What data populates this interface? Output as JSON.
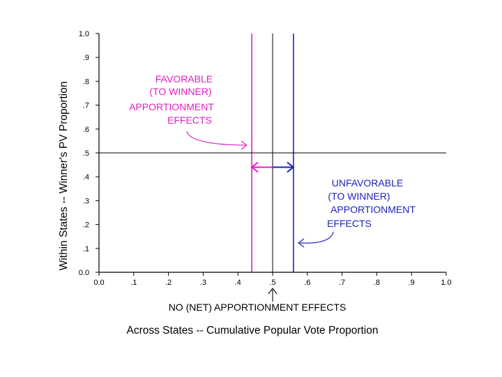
{
  "chart_data": {
    "type": "line",
    "xlabel": "Across States -- Cumulative Popular Vote Proportion",
    "ylabel": "Within States -- Winner's PV Proportion",
    "xlim": [
      0.0,
      1.0
    ],
    "ylim": [
      0.0,
      1.0
    ],
    "grid": false,
    "x_ticks": [
      {
        "value": 0.0,
        "label": "0.0"
      },
      {
        "value": 0.1,
        "label": ".1"
      },
      {
        "value": 0.2,
        "label": ".2"
      },
      {
        "value": 0.3,
        "label": ".3"
      },
      {
        "value": 0.4,
        "label": ".4"
      },
      {
        "value": 0.5,
        "label": ".5"
      },
      {
        "value": 0.6,
        "label": ".6"
      },
      {
        "value": 0.7,
        "label": ".7"
      },
      {
        "value": 0.8,
        "label": ".8"
      },
      {
        "value": 0.9,
        "label": ".9"
      },
      {
        "value": 1.0,
        "label": "1.0"
      }
    ],
    "y_ticks": [
      {
        "value": 0.0,
        "label": "0.0"
      },
      {
        "value": 0.1,
        "label": ".1"
      },
      {
        "value": 0.2,
        "label": ".2"
      },
      {
        "value": 0.3,
        "label": ".3"
      },
      {
        "value": 0.4,
        "label": ".4"
      },
      {
        "value": 0.5,
        "label": ".5"
      },
      {
        "value": 0.6,
        "label": ".6"
      },
      {
        "value": 0.7,
        "label": ".7"
      },
      {
        "value": 0.8,
        "label": ".8"
      },
      {
        "value": 0.9,
        "label": ".9"
      },
      {
        "value": 1.0,
        "label": "1.0"
      }
    ],
    "reference_lines": [
      {
        "name": "favorable-line",
        "orientation": "vertical",
        "x": 0.44,
        "color": "#e020c0"
      },
      {
        "name": "no-net-line",
        "orientation": "vertical",
        "x": 0.5,
        "color": "#000000"
      },
      {
        "name": "unfavorable-line",
        "orientation": "vertical",
        "x": 0.56,
        "color": "#2020c0"
      },
      {
        "name": "horizontal-half-line",
        "orientation": "horizontal",
        "y": 0.5,
        "color": "#000000"
      }
    ],
    "range_arrows": [
      {
        "name": "favorable-range-arrow",
        "from_x": 0.5,
        "to_x": 0.44,
        "y": 0.44,
        "color": "#e020c0"
      },
      {
        "name": "unfavorable-range-arrow",
        "from_x": 0.5,
        "to_x": 0.56,
        "y": 0.44,
        "color": "#2020c0"
      }
    ],
    "annotations": {
      "favorable": {
        "lines": [
          "FAVORABLE",
          "(TO WINNER)",
          "APPORTIONMENT",
          "EFFECTS"
        ],
        "color": "#e020c0"
      },
      "unfavorable": {
        "lines": [
          "UNFAVORABLE",
          "(TO WINNER)",
          "APPORTIONMENT",
          "EFFECTS"
        ],
        "color": "#2020c0"
      },
      "no_net": {
        "text": "NO  (NET)  APPORTIONMENT EFFECTS",
        "color": "#000000"
      }
    }
  }
}
